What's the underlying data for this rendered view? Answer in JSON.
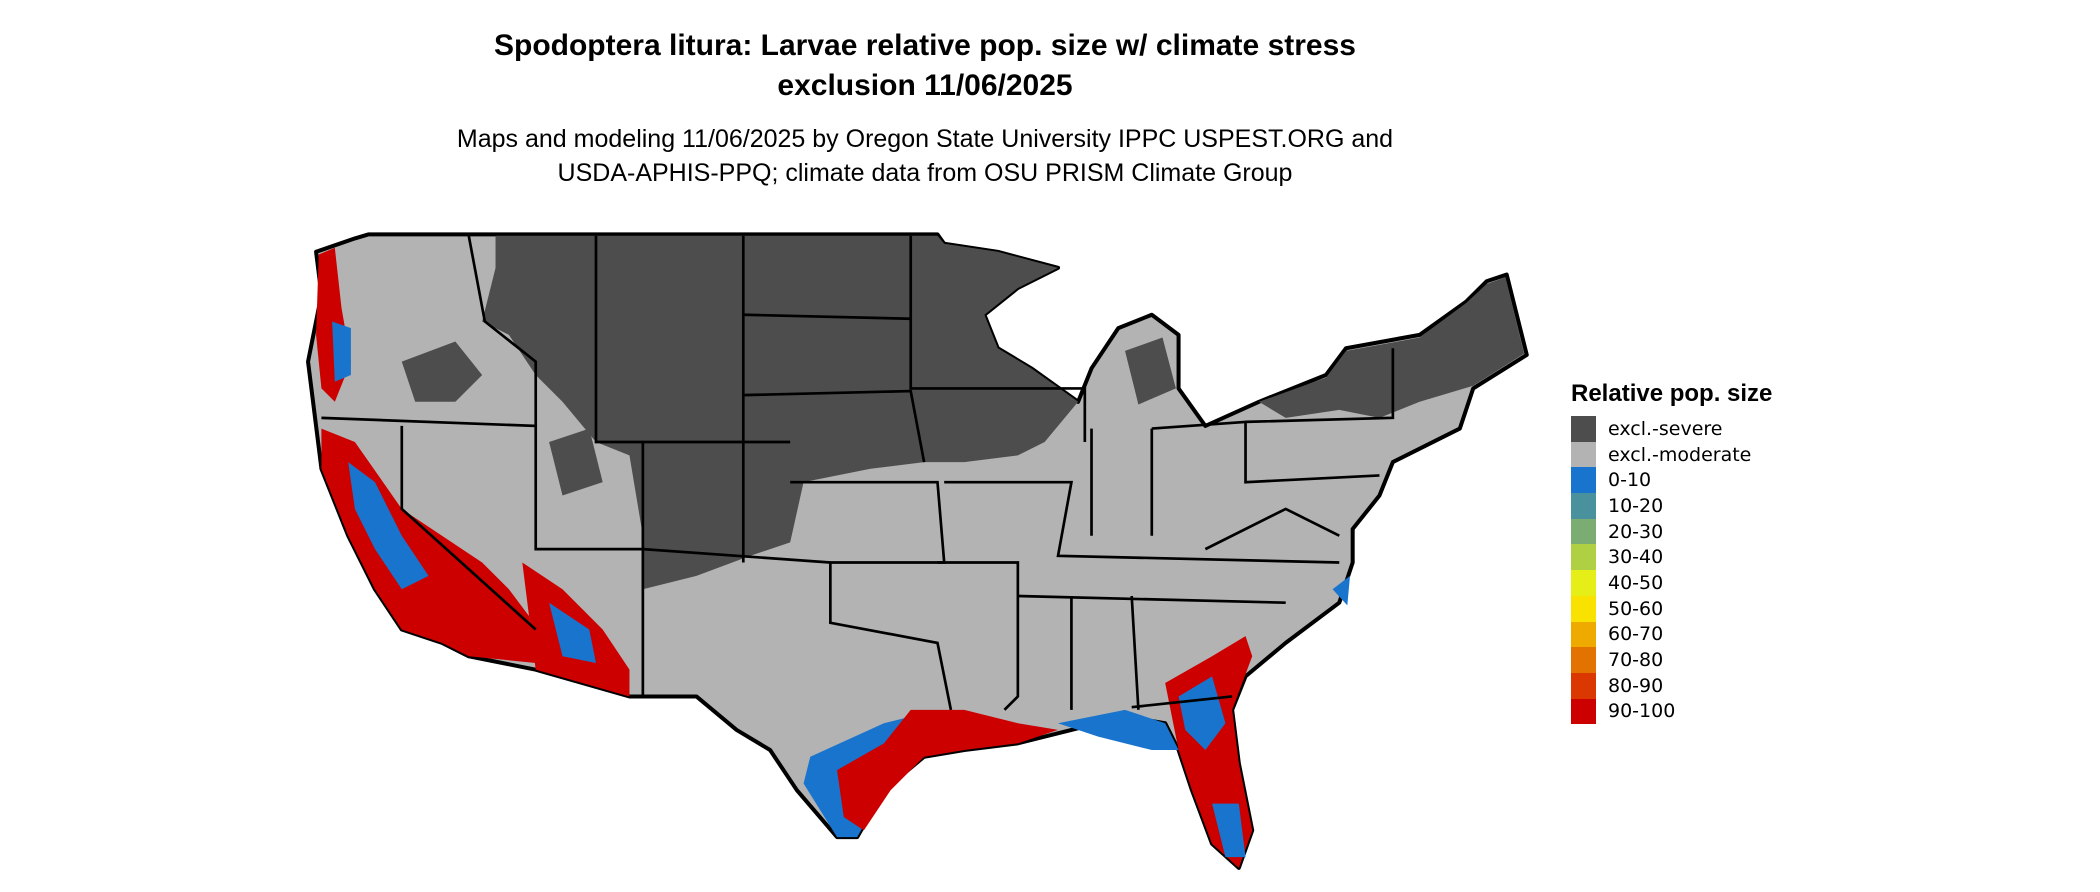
{
  "title": {
    "line1": "Spodoptera litura: Larvae relative pop. size w/ climate stress",
    "line2": "exclusion 11/06/2025"
  },
  "subtitle": {
    "line1": "Maps and modeling 11/06/2025 by Oregon State University IPPC USPEST.ORG and",
    "line2": "USDA-APHIS-PPQ; climate data from OSU PRISM Climate Group"
  },
  "legend": {
    "title": "Relative pop. size",
    "items": [
      {
        "label": "excl.-severe",
        "color": "#4d4d4d"
      },
      {
        "label": "excl.-moderate",
        "color": "#b3b3b3"
      },
      {
        "label": "0-10",
        "color": "#1874cd"
      },
      {
        "label": "10-20",
        "color": "#4a919e"
      },
      {
        "label": "20-30",
        "color": "#7bad73"
      },
      {
        "label": "30-40",
        "color": "#b0d044"
      },
      {
        "label": "40-50",
        "color": "#e5ef17"
      },
      {
        "label": "50-60",
        "color": "#f9e100"
      },
      {
        "label": "60-70",
        "color": "#efaa00"
      },
      {
        "label": "70-80",
        "color": "#e27300"
      },
      {
        "label": "80-90",
        "color": "#da3800"
      },
      {
        "label": "90-100",
        "color": "#cd0000"
      }
    ]
  },
  "map": {
    "region": "Contiguous United States"
  }
}
